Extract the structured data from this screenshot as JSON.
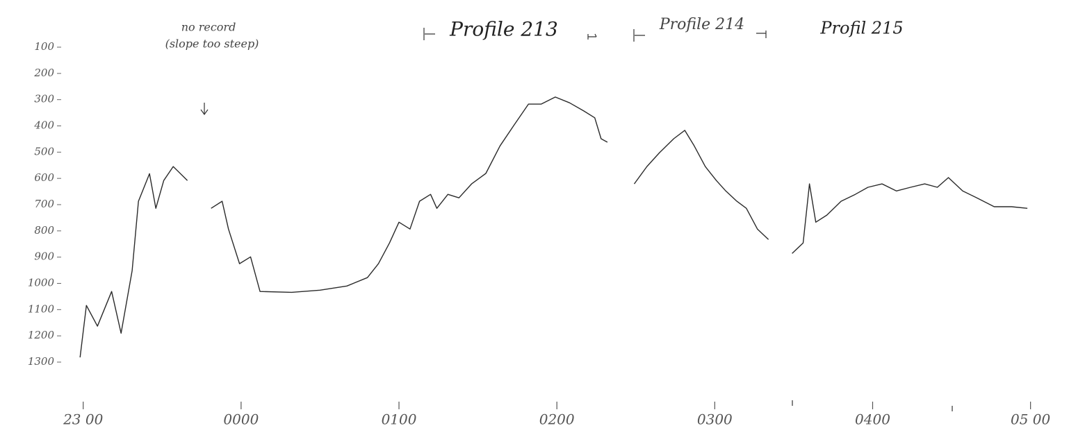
{
  "chart_data": {
    "type": "line",
    "annotations": [
      "no record",
      "(slope too steep)",
      "Profile 213",
      "Profile 214",
      "Profil 215"
    ],
    "x": [
      22.98,
      23.02,
      23.09,
      23.18,
      23.24,
      23.31,
      23.35,
      23.42,
      23.46,
      23.51,
      23.57,
      23.66,
      null,
      23.81,
      23.88,
      23.92,
      23.99,
      24.06,
      24.12,
      24.32,
      24.5,
      24.67,
      24.8,
      24.87,
      24.94,
      25.0,
      25.07,
      25.13,
      25.2,
      25.24,
      25.31,
      25.38,
      25.46,
      25.55,
      25.64,
      25.73,
      25.82,
      25.9,
      25.99,
      26.08,
      26.17,
      26.24,
      26.28,
      26.32,
      null,
      26.49,
      26.57,
      26.65,
      26.74,
      26.81,
      26.87,
      26.94,
      27.01,
      27.07,
      27.14,
      27.2,
      27.27,
      27.34,
      null,
      27.49,
      27.56,
      27.6,
      27.64,
      27.71,
      27.8,
      27.89,
      27.97,
      28.06,
      28.15,
      28.24,
      28.33,
      28.41,
      28.48,
      28.57,
      28.66,
      28.77,
      28.88,
      28.98
    ],
    "values": [
      1282,
      1084,
      1163,
      1031,
      1190,
      952,
      687,
      582,
      714,
      608,
      555,
      608,
      null,
      714,
      687,
      793,
      925,
      899,
      1031,
      1034,
      1026,
      1010,
      978,
      925,
      846,
      767,
      793,
      687,
      661,
      714,
      661,
      674,
      621,
      581,
      476,
      396,
      317,
      317,
      290,
      312,
      343,
      369,
      449,
      462,
      null,
      621,
      555,
      502,
      449,
      417,
      476,
      555,
      608,
      648,
      687,
      714,
      793,
      833,
      null,
      886,
      846,
      621,
      767,
      740,
      687,
      661,
      634,
      621,
      648,
      634,
      621,
      634,
      597,
      648,
      674,
      708,
      708,
      714
    ],
    "color": "#2a2a2a",
    "xlim": [
      22.9,
      29.05
    ],
    "xticks": [
      {
        "value": 23,
        "label": "23 00"
      },
      {
        "value": 24,
        "label": "0000"
      },
      {
        "value": 25,
        "label": "0100"
      },
      {
        "value": 26,
        "label": "0200"
      },
      {
        "value": 27,
        "label": "0300"
      },
      {
        "value": 28,
        "label": "0400"
      },
      {
        "value": 29,
        "label": "05 00"
      }
    ],
    "ylim": [
      100,
      1300
    ],
    "y_inverted": true,
    "yticks": [
      100,
      200,
      300,
      400,
      500,
      600,
      700,
      800,
      900,
      1000,
      1100,
      1200,
      1300
    ],
    "grid": false
  }
}
